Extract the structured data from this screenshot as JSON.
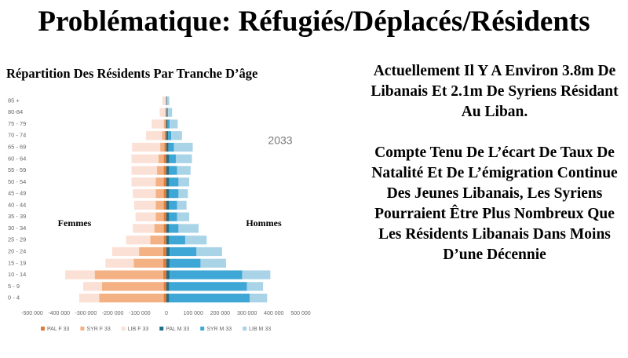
{
  "title": "Problématique: Réfugiés/Déplacés/Résidents",
  "paragraphs": [
    "Actuellement Il Y A Environ 3.8m De Libanais Et 2.1m De Syriens Résidant Au Liban.",
    "Compte Tenu De L’écart De Taux De Natalité Et De L’émigration Continue Des Jeunes Libanais, Les Syriens Pourraient Être Plus Nombreux Que Les Résidents Libanais Dans Moins D’une Décennie"
  ],
  "chart_data": {
    "type": "pyramid",
    "orientation": "horizontal",
    "stacked": true,
    "grid": false,
    "title": "Répartition Des Résidents Par Tranche D’âge",
    "annotations": [
      "2033",
      "Femmes",
      "Hommes"
    ],
    "categories": [
      "0 - 4",
      "5 - 9",
      "10 - 14",
      "15 - 19",
      "20 - 24",
      "25 - 29",
      "30 - 34",
      "35 - 39",
      "40 - 44",
      "45 - 49",
      "50 - 54",
      "55 - 59",
      "60 - 64",
      "65 - 69",
      "70 - 74",
      "75 - 79",
      "80-84",
      "85 +"
    ],
    "series": [
      {
        "name": "PAL F 33",
        "color": "#e07b39",
        "values": [
          -10000,
          -10000,
          -12000,
          -12000,
          -12000,
          -10000,
          -10000,
          -10000,
          -10000,
          -10000,
          -10000,
          -10000,
          -10000,
          -8000,
          -6000,
          -4000,
          -2000,
          -1000
        ]
      },
      {
        "name": "SYR F 33",
        "color": "#f4b183",
        "values": [
          -240000,
          -230000,
          -255000,
          -110000,
          -90000,
          -50000,
          -35000,
          -30000,
          -30000,
          -30000,
          -30000,
          -25000,
          -20000,
          -15000,
          -10000,
          -6000,
          -3000,
          -2000
        ]
      },
      {
        "name": "LIB F 33",
        "color": "#fbe0d5",
        "values": [
          -75000,
          -70000,
          -110000,
          -105000,
          -100000,
          -90000,
          -80000,
          -75000,
          -80000,
          -85000,
          -90000,
          -95000,
          -100000,
          -105000,
          -60000,
          -45000,
          -20000,
          -12000
        ]
      },
      {
        "name": "PAL M 33",
        "color": "#1f6f8b",
        "values": [
          10000,
          10000,
          12000,
          12000,
          12000,
          10000,
          10000,
          10000,
          10000,
          10000,
          10000,
          10000,
          10000,
          8000,
          6000,
          4000,
          2000,
          1000
        ]
      },
      {
        "name": "SYR M 33",
        "color": "#3fa7d6",
        "values": [
          300000,
          290000,
          270000,
          115000,
          100000,
          60000,
          35000,
          30000,
          30000,
          35000,
          35000,
          30000,
          25000,
          20000,
          12000,
          8000,
          4000,
          2000
        ]
      },
      {
        "name": "LIB M 33",
        "color": "#a9d4e8",
        "values": [
          65000,
          60000,
          105000,
          95000,
          95000,
          80000,
          75000,
          45000,
          35000,
          35000,
          40000,
          50000,
          60000,
          70000,
          40000,
          30000,
          15000,
          8000
        ]
      }
    ],
    "xlim": [
      -500000,
      500000
    ],
    "xticks": [
      {
        "value": -500000,
        "label": "-500 000"
      },
      {
        "value": -400000,
        "label": "-400 000"
      },
      {
        "value": -300000,
        "label": "-300 000"
      },
      {
        "value": -200000,
        "label": "-200 000"
      },
      {
        "value": -100000,
        "label": "-100 000"
      },
      0,
      {
        "value": 100000,
        "label": "100 000"
      },
      {
        "value": 200000,
        "label": "200 000"
      },
      {
        "value": 300000,
        "label": "300 000"
      },
      {
        "value": 400000,
        "label": "400 000"
      },
      {
        "value": 500000,
        "label": "500 000"
      }
    ]
  }
}
